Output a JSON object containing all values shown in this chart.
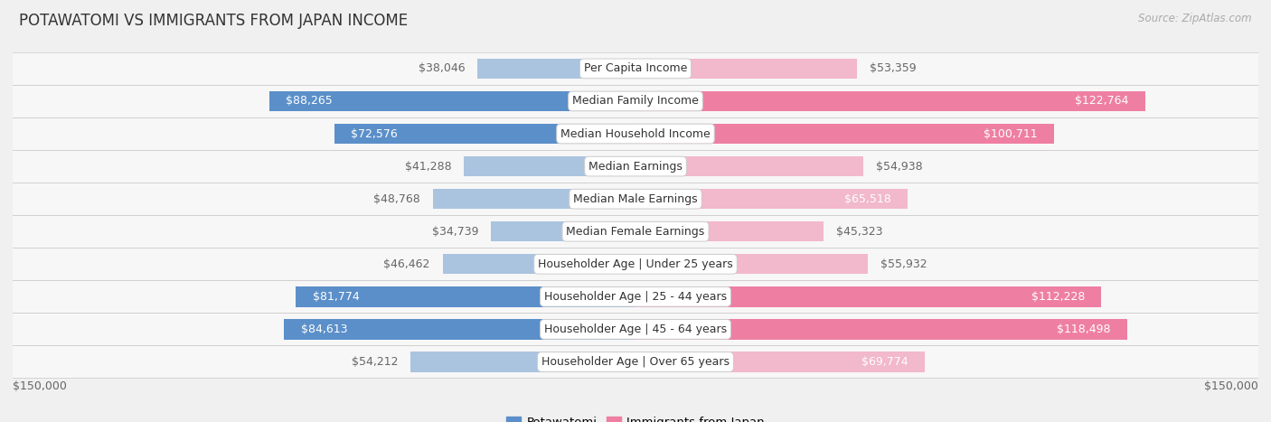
{
  "title": "POTAWATOMI VS IMMIGRANTS FROM JAPAN INCOME",
  "source": "Source: ZipAtlas.com",
  "categories": [
    "Per Capita Income",
    "Median Family Income",
    "Median Household Income",
    "Median Earnings",
    "Median Male Earnings",
    "Median Female Earnings",
    "Householder Age | Under 25 years",
    "Householder Age | 25 - 44 years",
    "Householder Age | 45 - 64 years",
    "Householder Age | Over 65 years"
  ],
  "potawatomi_values": [
    38046,
    88265,
    72576,
    41288,
    48768,
    34739,
    46462,
    81774,
    84613,
    54212
  ],
  "japan_values": [
    53359,
    122764,
    100711,
    54938,
    65518,
    45323,
    55932,
    112228,
    118498,
    69774
  ],
  "potawatomi_labels": [
    "$38,046",
    "$88,265",
    "$72,576",
    "$41,288",
    "$48,768",
    "$34,739",
    "$46,462",
    "$81,774",
    "$84,613",
    "$54,212"
  ],
  "japan_labels": [
    "$53,359",
    "$122,764",
    "$100,711",
    "$54,938",
    "$65,518",
    "$45,323",
    "$55,932",
    "$112,228",
    "$118,498",
    "$69,774"
  ],
  "potawatomi_color_light": "#aac4e0",
  "potawatomi_color_dark": "#5b8fc9",
  "japan_color_light": "#f2b8cb",
  "japan_color_dark": "#ee7fa3",
  "inside_label_color": "#ffffff",
  "outside_label_color": "#666666",
  "max_value": 150000,
  "legend_potawatomi": "Potawatomi",
  "legend_japan": "Immigrants from Japan",
  "bg_color": "#f0f0f0",
  "row_bg_light": "#f7f7f7",
  "row_border_color": "#d0d0d0",
  "bar_height": 0.62,
  "label_fontsize": 9.0,
  "category_fontsize": 9.0,
  "title_fontsize": 12,
  "source_fontsize": 8.5,
  "inside_threshold_potawatomi": 60000,
  "inside_threshold_japan": 60000
}
